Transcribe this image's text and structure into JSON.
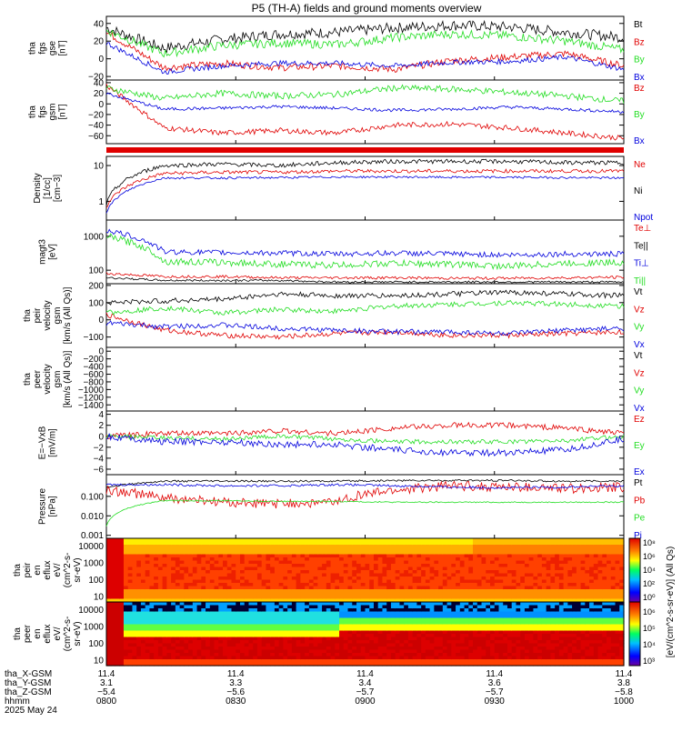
{
  "title": "P5 (TH-A) fields and ground moments overview",
  "colors": {
    "black": "#000000",
    "red": "#e00000",
    "green": "#22dd22",
    "blue": "#0000dd"
  },
  "chart_data": [
    {
      "id": "fgs_gse",
      "type": "line",
      "ylabel": [
        "tha",
        "fgs",
        "gse",
        "[nT]"
      ],
      "ylim": [
        -24,
        48
      ],
      "yticks": [
        "40",
        "20",
        "0",
        "−20"
      ],
      "tickvals": [
        40,
        20,
        0,
        -20
      ],
      "series": [
        {
          "name": "Bt",
          "color": "black",
          "level": [
            35,
            12,
            22,
            28,
            30,
            35,
            38,
            36,
            30,
            24
          ],
          "noise": 6
        },
        {
          "name": "Bz",
          "color": "red",
          "level": [
            30,
            -10,
            -5,
            -10,
            -8,
            -12,
            -2,
            2,
            6,
            -8
          ],
          "noise": 4
        },
        {
          "name": "By",
          "color": "green",
          "level": [
            32,
            6,
            15,
            18,
            16,
            24,
            28,
            26,
            20,
            10
          ],
          "noise": 5
        },
        {
          "name": "Bx",
          "color": "blue",
          "level": [
            18,
            -15,
            -8,
            -5,
            -5,
            -8,
            -4,
            -3,
            2,
            -12
          ],
          "noise": 3
        }
      ]
    },
    {
      "id": "fgs_gsm",
      "type": "line",
      "ylabel": [
        "tha",
        "fgs",
        "gsm",
        "[nT]"
      ],
      "ylim": [
        -75,
        45
      ],
      "yticks": [
        "40",
        "20",
        "0",
        "−20",
        "−40",
        "−60"
      ],
      "tickvals": [
        40,
        20,
        0,
        -20,
        -40,
        -60
      ],
      "series": [
        {
          "name": "Bz",
          "color": "red",
          "level": [
            35,
            -45,
            -55,
            -50,
            -55,
            -40,
            -38,
            -45,
            -55,
            -65
          ],
          "noise": 5
        },
        {
          "name": "By",
          "color": "green",
          "level": [
            30,
            10,
            20,
            15,
            18,
            30,
            28,
            22,
            15,
            5
          ],
          "noise": 6
        },
        {
          "name": "Bx",
          "color": "blue",
          "level": [
            20,
            -10,
            -8,
            -5,
            -8,
            -12,
            -10,
            -6,
            -10,
            -15
          ],
          "noise": 3
        }
      ]
    },
    {
      "id": "density",
      "type": "line",
      "log": true,
      "ylabel": [
        "Density",
        "[1/cc]",
        "[cm−3]"
      ],
      "ylim": [
        0.3,
        18
      ],
      "yticks": [
        "10",
        "1"
      ],
      "tickvals": [
        10,
        1
      ],
      "series": [
        {
          "name": "Ne",
          "color": "red",
          "level": [
            0.7,
            6,
            6.5,
            6.5,
            7,
            7,
            7,
            7,
            7,
            7
          ],
          "noise": 0.05
        },
        {
          "name": "Ni",
          "color": "black",
          "level": [
            0.8,
            10,
            11,
            10,
            12,
            13,
            13,
            13,
            12,
            12
          ],
          "noise": 0.06
        },
        {
          "name": "Npot",
          "color": "blue",
          "level": [
            0.5,
            4.5,
            4.5,
            4.6,
            4.8,
            4.8,
            4.7,
            4.7,
            4.6,
            4.5
          ],
          "noise": 0.03
        }
      ]
    },
    {
      "id": "temperature",
      "type": "line",
      "log": true,
      "ylabel": [
        "magt3",
        "[eV]"
      ],
      "ylim": [
        40,
        3000
      ],
      "yticks": [
        "1000",
        "100"
      ],
      "tickvals": [
        1000,
        100
      ],
      "series": [
        {
          "name": "Te⊥",
          "color": "red",
          "level": [
            80,
            65,
            65,
            60,
            60,
            60,
            58,
            58,
            60,
            62
          ],
          "noise": 0.04
        },
        {
          "name": "Te||",
          "color": "black",
          "level": [
            60,
            50,
            50,
            50,
            45,
            45,
            45,
            45,
            45,
            45
          ],
          "noise": 0.03
        },
        {
          "name": "Ti⊥",
          "color": "blue",
          "level": [
            1500,
            350,
            330,
            320,
            300,
            320,
            300,
            280,
            300,
            300
          ],
          "noise": 0.08
        },
        {
          "name": "Ti||",
          "color": "green",
          "level": [
            1000,
            180,
            170,
            150,
            140,
            160,
            150,
            130,
            160,
            170
          ],
          "noise": 0.1
        }
      ]
    },
    {
      "id": "peir_velocity",
      "type": "line",
      "ylabel": [
        "tha",
        "peir",
        "velocity",
        "gsm",
        "[km/s (All Qs)]"
      ],
      "ylim": [
        -160,
        210
      ],
      "yticks": [
        "200",
        "100",
        "0",
        "−100"
      ],
      "tickvals": [
        200,
        100,
        0,
        -100
      ],
      "series": [
        {
          "name": "Vt",
          "color": "black",
          "level": [
            100,
            110,
            120,
            150,
            140,
            140,
            150,
            160,
            150,
            140
          ],
          "noise": 15
        },
        {
          "name": "Vz",
          "color": "red",
          "level": [
            30,
            -60,
            -90,
            -100,
            -80,
            -70,
            -90,
            -90,
            -80,
            -70
          ],
          "noise": 15
        },
        {
          "name": "Vy",
          "color": "green",
          "level": [
            40,
            70,
            40,
            60,
            50,
            80,
            90,
            100,
            90,
            80
          ],
          "noise": 15
        },
        {
          "name": "Vx",
          "color": "blue",
          "level": [
            -20,
            -40,
            -30,
            -50,
            -60,
            -70,
            -70,
            -80,
            -60,
            -50
          ],
          "noise": 15
        }
      ]
    },
    {
      "id": "peer_velocity",
      "type": "line",
      "empty": true,
      "ylabel": [
        "tha",
        "peer",
        "velocity",
        "gsm",
        "[km/s (All Qs)]"
      ],
      "ylim": [
        -1560,
        100
      ],
      "yticks": [
        "0",
        "−200",
        "−400",
        "−600",
        "−800",
        "−1000",
        "−1200",
        "−1400"
      ],
      "tickvals": [
        0,
        -200,
        -400,
        -600,
        -800,
        -1000,
        -1200,
        -1400
      ],
      "series": [
        {
          "name": "Vt",
          "color": "black"
        },
        {
          "name": "Vz",
          "color": "red"
        },
        {
          "name": "Vy",
          "color": "green"
        },
        {
          "name": "Vx",
          "color": "blue"
        }
      ]
    },
    {
      "id": "efield",
      "type": "line",
      "ylabel": [
        "E=−VxB",
        "[mV/m]"
      ],
      "ylim": [
        -7,
        4.6
      ],
      "yticks": [
        "4",
        "2",
        "0",
        "−2",
        "−4",
        "−6"
      ],
      "tickvals": [
        4,
        2,
        0,
        -2,
        -4,
        -6
      ],
      "series": [
        {
          "name": "Ez",
          "color": "red",
          "level": [
            0,
            0.5,
            0.5,
            1,
            0.5,
            1.5,
            2,
            2,
            1.5,
            0.5
          ],
          "noise": 0.5
        },
        {
          "name": "Ey",
          "color": "green",
          "level": [
            0,
            -0.3,
            -0.5,
            0,
            -0.5,
            -1,
            -1,
            -1,
            -0.8,
            0
          ],
          "noise": 0.4
        },
        {
          "name": "Ex",
          "color": "blue",
          "level": [
            0,
            -1,
            -1,
            -1.5,
            -1.5,
            -2.5,
            -3,
            -3,
            -2.5,
            -0.5
          ],
          "noise": 0.6
        }
      ]
    },
    {
      "id": "pressure",
      "type": "line",
      "log": true,
      "ylabel": [
        "Pressure",
        "[nPa]"
      ],
      "ylim": [
        0.0007,
        1.3
      ],
      "yticks": [
        "0.100",
        "0.010",
        "0.001"
      ],
      "tickvals": [
        0.1,
        0.01,
        0.001
      ],
      "series": [
        {
          "name": "Pt",
          "color": "black",
          "level": [
            0.3,
            0.6,
            0.6,
            0.6,
            0.6,
            0.65,
            0.65,
            0.65,
            0.6,
            0.6
          ],
          "noise": 0.05
        },
        {
          "name": "Pb",
          "color": "red",
          "level": [
            0.2,
            0.08,
            0.05,
            0.04,
            0.05,
            0.2,
            0.35,
            0.3,
            0.25,
            0.3
          ],
          "noise": 0.25
        },
        {
          "name": "Pe",
          "color": "green",
          "level": [
            0.003,
            0.06,
            0.06,
            0.055,
            0.055,
            0.05,
            0.05,
            0.05,
            0.05,
            0.05
          ],
          "noise": 0.03
        },
        {
          "name": "Pi",
          "color": "blue",
          "level": [
            0.4,
            0.4,
            0.35,
            0.35,
            0.4,
            0.35,
            0.3,
            0.28,
            0.3,
            0.35
          ],
          "noise": 0.06
        }
      ]
    },
    {
      "id": "peir_spectrogram",
      "type": "heatmap",
      "ylabel": [
        "tha",
        "peir",
        "en",
        "eflux",
        "eV/",
        "(cm^2-s-",
        "sr-eV)"
      ],
      "yticks": [
        "10000",
        "1000",
        "100",
        "10"
      ],
      "tickvals": [
        10000,
        1000,
        100,
        10
      ],
      "ylim": [
        5,
        30000
      ]
    },
    {
      "id": "peer_spectrogram",
      "type": "heatmap",
      "ylabel": [
        "tha",
        "peer",
        "en",
        "eflux",
        "eV/",
        "(cm^2-s-",
        "sr-eV)"
      ],
      "yticks": [
        "10000",
        "1000",
        "100",
        "10"
      ],
      "tickvals": [
        10000,
        1000,
        100,
        10
      ],
      "ylim": [
        5,
        30000
      ]
    }
  ],
  "colorbar": {
    "label": "[eV/(cm^2-s-sr-eV)] (All Qs)",
    "ticks_top": [
      "10⁸",
      "10⁶",
      "10⁴",
      "10²",
      "10⁰"
    ],
    "ticks_bottom": [
      "10⁶",
      "10⁵",
      "10⁴",
      "10³"
    ]
  },
  "xaxis": {
    "row_labels": [
      "tha_X-GSM",
      "tha_Y-GSM",
      "tha_Z-GSM",
      "hhmm",
      "2025 May 24"
    ],
    "ticks": [
      {
        "values": [
          "11.4",
          "3.1",
          "−5.4",
          "0800"
        ]
      },
      {
        "values": [
          "11.4",
          "3.3",
          "−5.6",
          "0830"
        ]
      },
      {
        "values": [
          "11.4",
          "3.4",
          "−5.7",
          "0900"
        ]
      },
      {
        "values": [
          "11.4",
          "3.6",
          "−5.7",
          "0930"
        ]
      },
      {
        "values": [
          "11.4",
          "3.8",
          "−5.8",
          "1000"
        ]
      }
    ]
  }
}
